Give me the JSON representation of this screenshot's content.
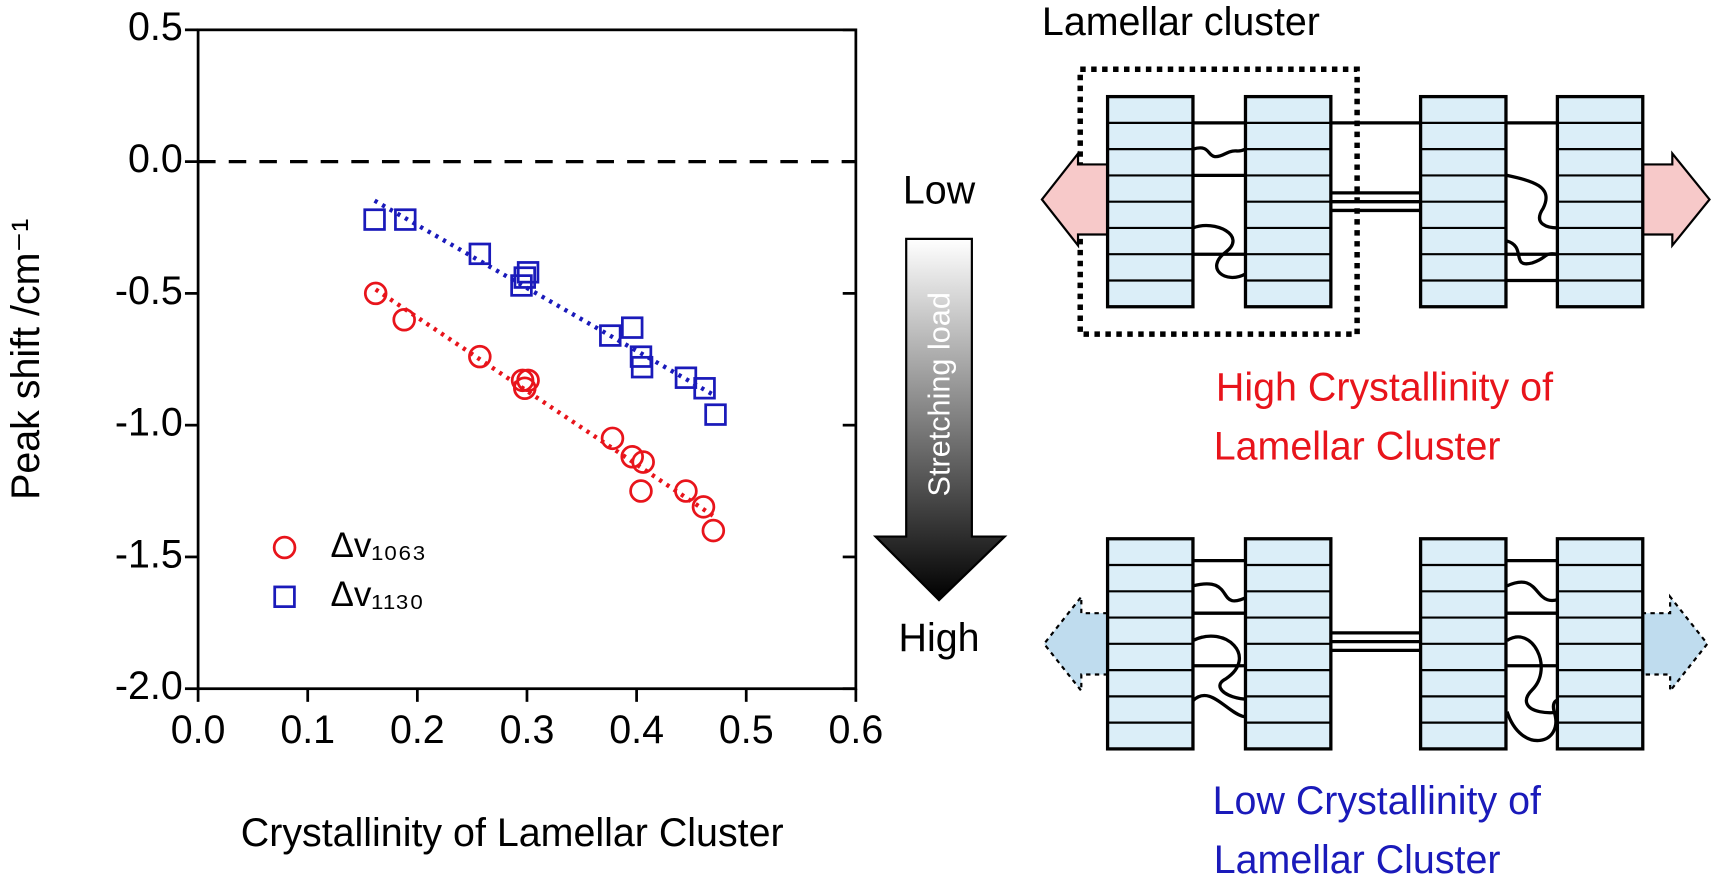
{
  "chart_data": {
    "type": "scatter",
    "xlabel": "Crystallinity of Lamellar Cluster",
    "ylabel": "Peak shift /cm⁻¹",
    "xlim": [
      0,
      0.6
    ],
    "ylim": [
      -2.0,
      0.5
    ],
    "xticks": [
      {
        "value": 0,
        "label": "0.0"
      },
      0.1,
      0.2,
      0.3,
      0.4,
      0.5,
      0.6
    ],
    "yticks": [
      0.5,
      {
        "value": 0,
        "label": "0.0"
      },
      -0.5,
      {
        "value": -1,
        "label": "-1.0"
      },
      -1.5,
      {
        "value": -2,
        "label": "-2.0"
      }
    ],
    "reference_line": 0,
    "trendline": true,
    "legend": "lower left",
    "series": [
      {
        "name": "Δv₁₀₆₃",
        "color": "#e8141b",
        "marker": "circle",
        "x": [
          0.162,
          0.188,
          0.257,
          0.296,
          0.301,
          0.298,
          0.378,
          0.396,
          0.406,
          0.404,
          0.445,
          0.461,
          0.47
        ],
        "values": [
          -0.5,
          -0.6,
          -0.74,
          -0.83,
          -0.83,
          -0.86,
          -1.05,
          -1.12,
          -1.14,
          -1.25,
          -1.25,
          -1.31,
          -1.4
        ]
      },
      {
        "name": "Δv₁₁₃₀",
        "color": "#1a1aba",
        "marker": "square",
        "x": [
          0.161,
          0.189,
          0.257,
          0.301,
          0.298,
          0.295,
          0.376,
          0.396,
          0.404,
          0.405,
          0.445,
          0.462,
          0.472
        ],
        "values": [
          -0.22,
          -0.22,
          -0.35,
          -0.42,
          -0.44,
          -0.47,
          -0.66,
          -0.63,
          -0.74,
          -0.78,
          -0.82,
          -0.86,
          -0.96
        ]
      }
    ]
  },
  "diagram": {
    "cluster_label": "Lamellar cluster",
    "arrow_top": "Low",
    "arrow_label": "Stretching load",
    "arrow_bottom": "High",
    "high_caption": [
      "High Crystallinity of",
      "Lamellar Cluster"
    ],
    "low_caption": [
      "Low Crystallinity of",
      "Lamellar Cluster"
    ]
  }
}
